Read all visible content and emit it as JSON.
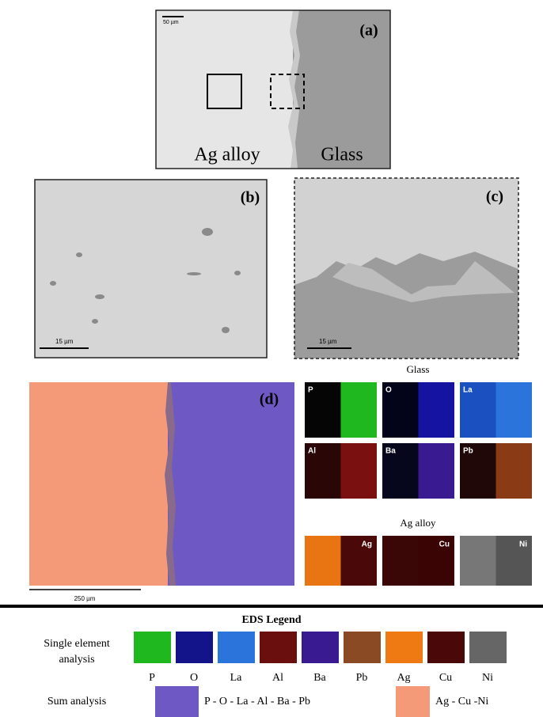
{
  "panel_a": {
    "label": "(a)",
    "scale_bar": "50 µm",
    "left": "Ag alloy",
    "right": "Glass"
  },
  "panel_b": {
    "label": "(b)",
    "scale_bar": "15 µm"
  },
  "panel_c": {
    "label": "(c)",
    "scale_bar": "15 µm"
  },
  "panel_d": {
    "label": "(d)",
    "scale_bar": "250 µm"
  },
  "maps": {
    "glass_title": "Glass",
    "glass": [
      "P",
      "O",
      "La",
      "Al",
      "Ba",
      "Pb"
    ],
    "alloy_title": "Ag alloy",
    "alloy": [
      "Ag",
      "Cu",
      "Ni"
    ]
  },
  "legend": {
    "title": "EDS Legend",
    "single_label": [
      "Single element",
      "analysis"
    ],
    "elements": [
      "P",
      "O",
      "La",
      "Al",
      "Ba",
      "Pb",
      "Ag",
      "Cu",
      "Ni"
    ],
    "sum_label": "Sum analysis",
    "sum_glass": "P - O - La - Al - Ba - Pb",
    "sum_alloy": "Ag - Cu -Ni"
  }
}
